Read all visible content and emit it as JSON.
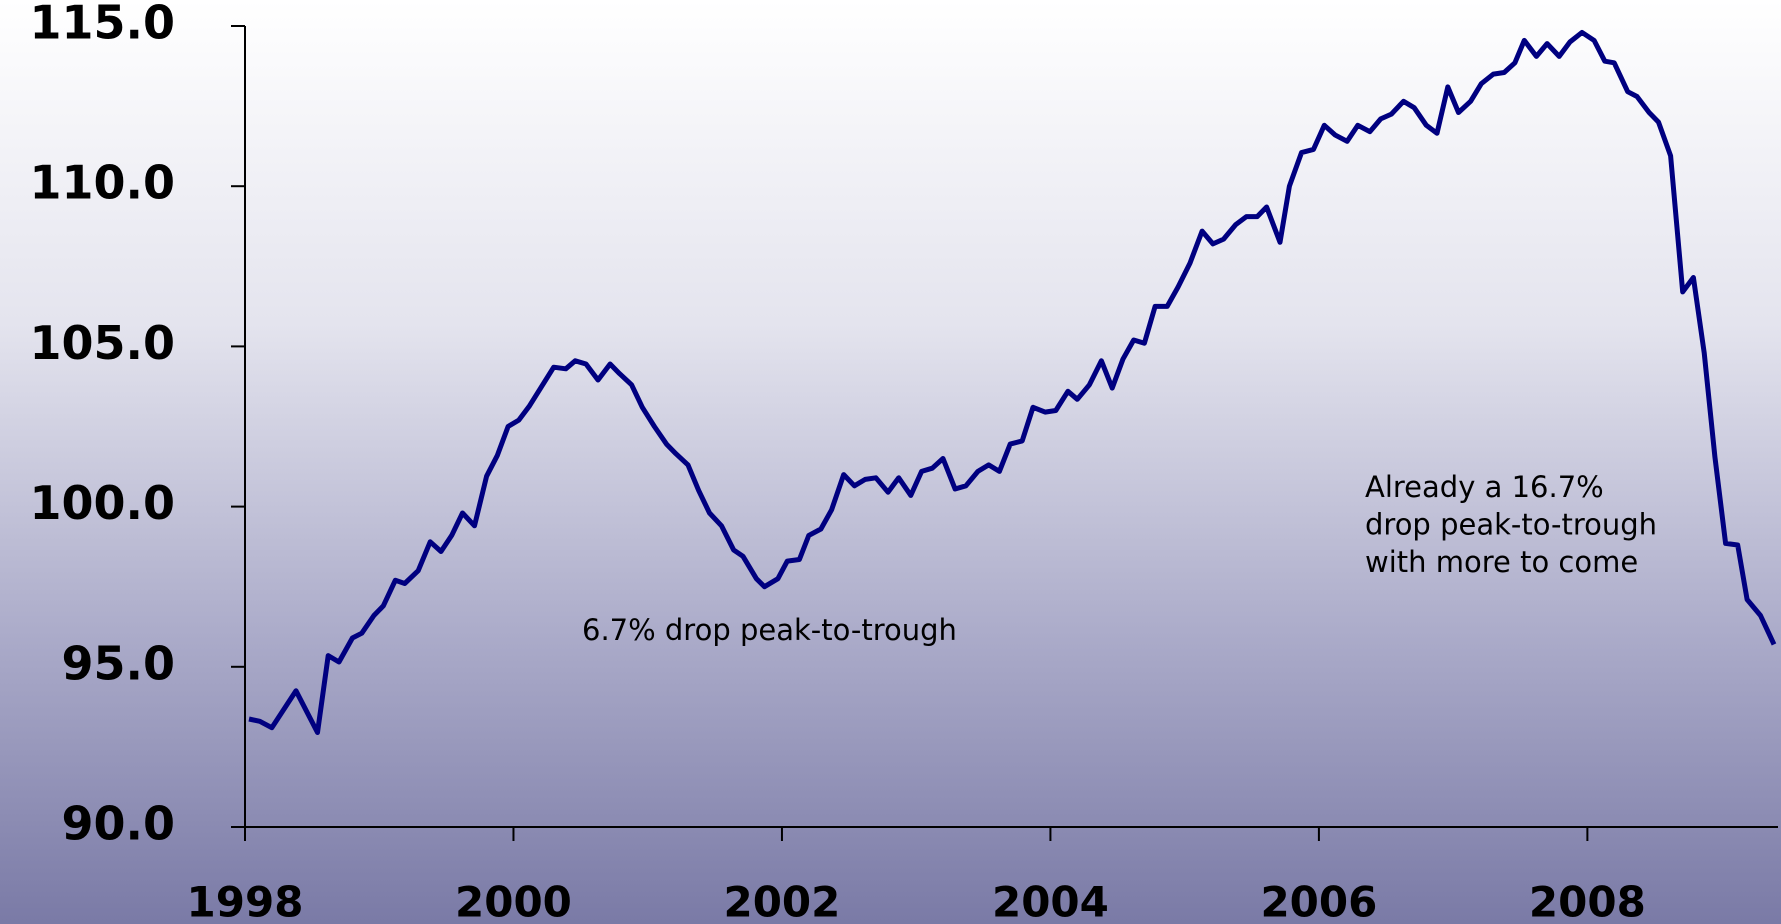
{
  "chart_data": {
    "type": "line",
    "x": [
      1998.03,
      1998.11,
      1998.2,
      1998.38,
      1998.54,
      1998.62,
      1998.7,
      1998.8,
      1998.87,
      1998.96,
      1999.03,
      1999.12,
      1999.19,
      1999.29,
      1999.38,
      1999.46,
      1999.54,
      1999.62,
      1999.71,
      1999.8,
      1999.88,
      1999.96,
      2000.04,
      2000.12,
      2000.3,
      2000.39,
      2000.46,
      2000.54,
      2000.63,
      2000.72,
      2000.79,
      2000.88,
      2000.96,
      2001.05,
      2001.14,
      2001.21,
      2001.3,
      2001.38,
      2001.46,
      2001.55,
      2001.64,
      2001.71,
      2001.81,
      2001.87,
      2001.97,
      2002.04,
      2002.13,
      2002.2,
      2002.29,
      2002.37,
      2002.46,
      2002.54,
      2002.62,
      2002.7,
      2002.79,
      2002.87,
      2002.96,
      2003.04,
      2003.12,
      2003.2,
      2003.29,
      2003.37,
      2003.46,
      2003.54,
      2003.62,
      2003.7,
      2003.79,
      2003.87,
      2003.96,
      2004.04,
      2004.13,
      2004.2,
      2004.29,
      2004.38,
      2004.46,
      2004.54,
      2004.62,
      2004.7,
      2004.78,
      2004.87,
      2004.95,
      2005.04,
      2005.13,
      2005.21,
      2005.29,
      2005.38,
      2005.46,
      2005.54,
      2005.61,
      2005.71,
      2005.78,
      2005.87,
      2005.96,
      2006.04,
      2006.12,
      2006.21,
      2006.29,
      2006.38,
      2006.46,
      2006.54,
      2006.63,
      2006.71,
      2006.8,
      2006.88,
      2006.96,
      2007.04,
      2007.13,
      2007.21,
      2007.3,
      2007.38,
      2007.46,
      2007.53,
      2007.62,
      2007.7,
      2007.79,
      2007.87,
      2007.96,
      2008.05,
      2008.13,
      2008.2,
      2008.3,
      2008.37,
      2008.46,
      2008.53,
      2008.62,
      2008.71,
      2008.79,
      2008.87,
      2008.95,
      2009.03,
      2009.12,
      2009.19,
      2009.29,
      2009.39
    ],
    "series": [
      {
        "color": "#000080",
        "values": [
          93.37,
          93.3,
          93.1,
          94.25,
          92.95,
          95.35,
          95.15,
          95.9,
          96.05,
          96.6,
          96.9,
          97.7,
          97.6,
          98.0,
          98.9,
          98.6,
          99.1,
          99.8,
          99.4,
          100.95,
          101.6,
          102.5,
          102.7,
          103.15,
          104.35,
          104.3,
          104.55,
          104.45,
          103.95,
          104.45,
          104.15,
          103.8,
          103.1,
          102.5,
          101.95,
          101.65,
          101.3,
          100.5,
          99.8,
          99.4,
          98.65,
          98.45,
          97.75,
          97.5,
          97.75,
          98.3,
          98.35,
          99.1,
          99.3,
          99.9,
          101.0,
          100.65,
          100.85,
          100.9,
          100.45,
          100.9,
          100.35,
          101.1,
          101.2,
          101.5,
          100.55,
          100.65,
          101.1,
          101.3,
          101.1,
          101.95,
          102.05,
          103.1,
          102.95,
          103.0,
          103.6,
          103.35,
          103.8,
          104.55,
          103.7,
          104.6,
          105.2,
          105.1,
          106.25,
          106.25,
          106.85,
          107.6,
          108.6,
          108.2,
          108.35,
          108.8,
          109.05,
          109.05,
          109.35,
          108.25,
          110.0,
          111.05,
          111.15,
          111.9,
          111.6,
          111.4,
          111.9,
          111.7,
          112.1,
          112.25,
          112.65,
          112.45,
          111.9,
          111.65,
          113.1,
          112.3,
          112.65,
          113.2,
          113.5,
          113.55,
          113.85,
          114.55,
          114.05,
          114.45,
          114.05,
          114.5,
          114.8,
          114.55,
          113.9,
          113.85,
          112.95,
          112.8,
          112.3,
          112.0,
          110.95,
          106.7,
          107.15,
          104.8,
          101.55,
          98.85,
          98.8,
          97.1,
          96.6,
          95.7
        ]
      }
    ],
    "xlim": [
      1998,
      2009.42
    ],
    "xticks": [
      1998,
      2000,
      2002,
      2004,
      2006,
      2008
    ],
    "ylim": [
      90,
      115
    ],
    "yticks": [
      {
        "value": 90,
        "label": "90.0"
      },
      {
        "value": 95,
        "label": "95.0"
      },
      {
        "value": 100,
        "label": "100.0"
      },
      {
        "value": 105,
        "label": "105.0"
      },
      {
        "value": 110,
        "label": "110.0"
      },
      {
        "value": 115,
        "label": "115.0"
      }
    ],
    "annotations": [
      {
        "lines": [
          "6.7% drop peak-to-trough"
        ]
      },
      {
        "lines": [
          "Already a 16.7%",
          "drop peak-to-trough",
          "with more to come"
        ]
      }
    ]
  }
}
